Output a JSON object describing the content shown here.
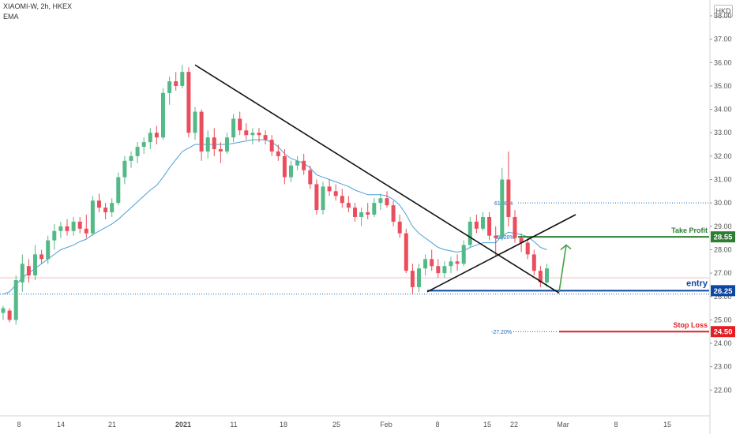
{
  "header": {
    "symbol_line": "XIAOMI-W, 2h, HKEX",
    "indicator": "EMA"
  },
  "currency_button": "HKD",
  "colors": {
    "up": "#53b987",
    "down": "#eb4d5c",
    "ema": "#4a9fd8",
    "trend": "#111111",
    "take_profit": "#2e7d32",
    "entry": "#0d47a1",
    "stop_loss": "#e31e24",
    "fib": "#1565c0"
  },
  "chart_data": {
    "type": "candlestick",
    "title": "",
    "ylim": [
      21.0,
      38.0
    ],
    "y_ticks": [
      22.0,
      23.0,
      24.0,
      25.0,
      26.0,
      27.0,
      28.0,
      29.0,
      30.0,
      31.0,
      32.0,
      33.0,
      34.0,
      35.0,
      36.0,
      37.0,
      38.0
    ],
    "x_tick_labels": [
      "8",
      "14",
      "21",
      "2021",
      "11",
      "18",
      "25",
      "Feb",
      "8",
      "15",
      "22",
      "Mar",
      "8",
      "15"
    ],
    "candles_ohlc": [
      [
        25.3,
        25.6,
        25.0,
        25.5
      ],
      [
        25.4,
        25.5,
        24.9,
        25.0
      ],
      [
        25.0,
        26.9,
        24.8,
        26.7
      ],
      [
        26.6,
        27.8,
        26.2,
        27.4
      ],
      [
        27.3,
        27.6,
        26.6,
        26.9
      ],
      [
        26.9,
        28.2,
        26.7,
        27.8
      ],
      [
        27.8,
        28.0,
        27.4,
        27.6
      ],
      [
        27.6,
        28.6,
        27.4,
        28.4
      ],
      [
        28.4,
        29.1,
        28.0,
        28.8
      ],
      [
        28.8,
        29.2,
        28.5,
        29.0
      ],
      [
        29.0,
        29.3,
        28.6,
        28.8
      ],
      [
        28.8,
        29.4,
        28.6,
        29.2
      ],
      [
        29.2,
        29.4,
        28.7,
        28.9
      ],
      [
        28.9,
        29.5,
        28.5,
        28.7
      ],
      [
        28.7,
        30.3,
        28.6,
        30.1
      ],
      [
        30.1,
        30.4,
        29.6,
        29.8
      ],
      [
        29.8,
        30.0,
        29.3,
        29.6
      ],
      [
        29.6,
        30.2,
        29.4,
        30.0
      ],
      [
        30.0,
        31.3,
        29.9,
        31.1
      ],
      [
        31.1,
        32.0,
        30.8,
        31.8
      ],
      [
        31.8,
        32.2,
        31.5,
        32.0
      ],
      [
        32.0,
        32.6,
        31.7,
        32.4
      ],
      [
        32.4,
        32.8,
        32.1,
        32.6
      ],
      [
        32.6,
        33.2,
        32.3,
        33.0
      ],
      [
        33.0,
        33.3,
        32.5,
        32.8
      ],
      [
        32.8,
        34.9,
        32.7,
        34.7
      ],
      [
        34.7,
        35.4,
        34.2,
        35.2
      ],
      [
        35.2,
        35.6,
        34.8,
        35.0
      ],
      [
        35.0,
        35.9,
        34.9,
        35.6
      ],
      [
        35.6,
        35.8,
        32.8,
        33.0
      ],
      [
        33.0,
        34.1,
        32.7,
        33.9
      ],
      [
        33.9,
        34.0,
        31.8,
        32.2
      ],
      [
        32.2,
        33.1,
        31.9,
        32.8
      ],
      [
        32.8,
        33.2,
        32.0,
        32.3
      ],
      [
        32.3,
        32.6,
        31.7,
        32.2
      ],
      [
        32.2,
        33.0,
        32.1,
        32.8
      ],
      [
        32.8,
        33.8,
        32.6,
        33.6
      ],
      [
        33.6,
        33.9,
        32.9,
        33.1
      ],
      [
        33.1,
        33.4,
        32.7,
        32.9
      ],
      [
        32.9,
        33.2,
        32.5,
        33.0
      ],
      [
        33.0,
        33.2,
        32.6,
        32.9
      ],
      [
        32.9,
        33.1,
        32.5,
        32.7
      ],
      [
        32.7,
        32.9,
        32.0,
        32.2
      ],
      [
        32.2,
        32.5,
        31.8,
        32.0
      ],
      [
        32.0,
        32.3,
        30.8,
        31.1
      ],
      [
        31.1,
        31.8,
        30.9,
        31.6
      ],
      [
        31.6,
        32.0,
        31.4,
        31.8
      ],
      [
        31.8,
        32.1,
        31.2,
        31.4
      ],
      [
        31.4,
        31.6,
        30.6,
        30.8
      ],
      [
        30.8,
        31.0,
        29.5,
        29.7
      ],
      [
        29.7,
        30.9,
        29.5,
        30.7
      ],
      [
        30.7,
        31.0,
        30.3,
        30.5
      ],
      [
        30.5,
        30.8,
        30.1,
        30.3
      ],
      [
        30.3,
        30.6,
        29.8,
        30.0
      ],
      [
        30.0,
        30.3,
        29.6,
        29.8
      ],
      [
        29.8,
        30.0,
        29.2,
        29.4
      ],
      [
        29.4,
        29.8,
        29.0,
        29.6
      ],
      [
        29.6,
        30.0,
        29.3,
        29.5
      ],
      [
        29.5,
        30.2,
        29.4,
        30.0
      ],
      [
        30.0,
        30.4,
        29.7,
        30.2
      ],
      [
        30.2,
        30.5,
        29.8,
        29.9
      ],
      [
        29.9,
        30.1,
        29.0,
        29.2
      ],
      [
        29.2,
        29.5,
        28.5,
        28.7
      ],
      [
        28.7,
        28.9,
        27.0,
        27.1
      ],
      [
        27.1,
        27.4,
        26.1,
        26.4
      ],
      [
        26.4,
        27.4,
        26.2,
        27.2
      ],
      [
        27.2,
        27.8,
        26.9,
        27.6
      ],
      [
        27.6,
        28.0,
        27.1,
        27.3
      ],
      [
        27.3,
        27.6,
        26.8,
        27.0
      ],
      [
        27.0,
        27.5,
        26.8,
        27.3
      ],
      [
        27.3,
        27.7,
        27.0,
        27.5
      ],
      [
        27.5,
        27.8,
        27.1,
        27.4
      ],
      [
        27.4,
        28.4,
        27.3,
        28.2
      ],
      [
        28.2,
        29.4,
        28.1,
        29.2
      ],
      [
        29.2,
        29.5,
        28.7,
        28.9
      ],
      [
        28.9,
        29.6,
        28.8,
        29.4
      ],
      [
        29.4,
        29.6,
        28.4,
        28.6
      ],
      [
        28.6,
        29.0,
        27.7,
        28.5
      ],
      [
        28.5,
        31.5,
        28.4,
        31.0
      ],
      [
        31.0,
        32.2,
        29.0,
        29.4
      ],
      [
        29.4,
        29.7,
        28.3,
        28.5
      ],
      [
        28.5,
        28.7,
        27.9,
        28.3
      ],
      [
        28.3,
        28.5,
        27.6,
        27.8
      ],
      [
        27.8,
        28.0,
        26.9,
        27.1
      ],
      [
        27.1,
        27.3,
        26.4,
        26.6
      ],
      [
        26.6,
        27.4,
        26.4,
        27.2
      ]
    ],
    "ema": {
      "name": "EMA",
      "values": [
        26.1,
        26.2,
        26.5,
        26.8,
        27.0,
        27.2,
        27.4,
        27.6,
        27.8,
        28.0,
        28.1,
        28.2,
        28.35,
        28.45,
        28.65,
        28.8,
        28.95,
        29.1,
        29.3,
        29.55,
        29.8,
        30.05,
        30.3,
        30.55,
        30.75,
        31.1,
        31.5,
        31.85,
        32.2,
        32.35,
        32.5,
        32.5,
        32.5,
        32.5,
        32.5,
        32.5,
        32.55,
        32.6,
        32.65,
        32.7,
        32.7,
        32.7,
        32.6,
        32.4,
        32.1,
        31.9,
        31.8,
        31.7,
        31.5,
        31.2,
        31.1,
        31.0,
        30.9,
        30.8,
        30.7,
        30.55,
        30.45,
        30.35,
        30.35,
        30.35,
        30.3,
        30.15,
        29.9,
        29.5,
        29.0,
        28.7,
        28.5,
        28.3,
        28.1,
        28.0,
        27.95,
        27.9,
        27.95,
        28.1,
        28.2,
        28.3,
        28.3,
        28.3,
        28.6,
        28.75,
        28.7,
        28.65,
        28.55,
        28.35,
        28.1,
        28.0
      ]
    },
    "levels": {
      "take_profit": {
        "label": "Take Profit",
        "value": "28.55"
      },
      "entry": {
        "label": "entry",
        "value": "26.25"
      },
      "stop_loss": {
        "label": "Stop Loss",
        "value": "24.50"
      }
    },
    "fib_labels": [
      "61.80%",
      "38.20%",
      "-27.20%"
    ],
    "fib_values": [
      30.0,
      28.55,
      24.5
    ],
    "dotted_levels": [
      26.1
    ],
    "red_line_level": 26.8
  }
}
